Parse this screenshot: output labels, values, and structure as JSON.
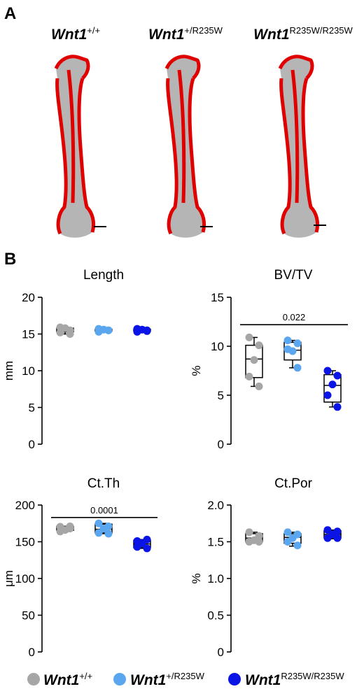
{
  "panels": {
    "a_label": "A",
    "b_label": "B"
  },
  "genotypes": [
    {
      "base": "Wnt1",
      "sup": "+/+"
    },
    {
      "base": "Wnt1",
      "sup": "+/R235W"
    },
    {
      "base": "Wnt1",
      "sup": "R235W/R235W"
    }
  ],
  "colors": {
    "wt": "#a6a6a6",
    "het": "#5aa7f0",
    "hom": "#0a14e6",
    "bone_gray": "#b5b5b5",
    "bone_red": "#e00000"
  },
  "chart_data": [
    {
      "type": "box",
      "title": "Length",
      "ylabel": "mm",
      "ylim": [
        0,
        20
      ],
      "yticks": [
        0,
        5,
        10,
        15,
        20
      ],
      "series": [
        {
          "group": "wt",
          "points": [
            15.2,
            15.5,
            15.8,
            15.9,
            15.0
          ],
          "box": [
            15.0,
            15.3,
            15.6,
            15.8,
            15.9
          ]
        },
        {
          "group": "het",
          "points": [
            15.3,
            15.5,
            15.6,
            15.7,
            15.5
          ],
          "box": [
            15.3,
            15.4,
            15.5,
            15.65,
            15.7
          ]
        },
        {
          "group": "hom",
          "points": [
            15.3,
            15.5,
            15.6,
            15.7,
            15.4
          ],
          "box": [
            15.3,
            15.4,
            15.5,
            15.65,
            15.7
          ]
        }
      ],
      "annotation": null
    },
    {
      "type": "box",
      "title": "BV/TV",
      "ylabel": "%",
      "ylim": [
        0,
        15
      ],
      "yticks": [
        0,
        5,
        10,
        15
      ],
      "series": [
        {
          "group": "wt",
          "points": [
            10.9,
            10.1,
            8.6,
            6.9,
            5.9
          ],
          "box": [
            5.9,
            6.8,
            8.7,
            10.1,
            10.9
          ]
        },
        {
          "group": "het",
          "points": [
            10.6,
            10.3,
            9.5,
            9.7,
            7.8
          ],
          "box": [
            7.8,
            8.6,
            9.6,
            10.4,
            10.6
          ]
        },
        {
          "group": "hom",
          "points": [
            7.5,
            7.0,
            6.1,
            5.0,
            3.8
          ],
          "box": [
            3.8,
            4.3,
            6.0,
            7.1,
            7.5
          ]
        }
      ],
      "annotation": {
        "from": 0,
        "to": 2,
        "y": 12.2,
        "label": "0.022"
      }
    },
    {
      "type": "box",
      "title": "Ct.Th",
      "ylabel": "μm",
      "ylim": [
        0,
        200
      ],
      "yticks": [
        0,
        50,
        100,
        150,
        200
      ],
      "series": [
        {
          "group": "wt",
          "points": [
            170.5,
            168.0,
            166.0,
            164.0,
            171.0
          ],
          "box": [
            164.0,
            165.5,
            168.0,
            171.0,
            171.0
          ]
        },
        {
          "group": "het",
          "points": [
            175.0,
            171.0,
            168.0,
            162.0,
            161.0
          ],
          "box": [
            161.0,
            162.0,
            167.0,
            174.0,
            175.0
          ]
        },
        {
          "group": "hom",
          "points": [
            151.0,
            153.0,
            148.0,
            143.0,
            141.0
          ],
          "box": [
            141.0,
            142.0,
            147.0,
            152.0,
            153.0
          ]
        }
      ],
      "annotation": {
        "from": 0,
        "to": 2,
        "y": 183,
        "label": "0.0001"
      }
    },
    {
      "type": "box",
      "title": "Ct.Por",
      "ylabel": "%",
      "ylim": [
        0,
        2.0
      ],
      "yticks": [
        0,
        0.5,
        1.0,
        1.5,
        2.0
      ],
      "ytick_labels": [
        "0",
        "0.5",
        "1.0",
        "1.5",
        "2.0"
      ],
      "series": [
        {
          "group": "wt",
          "points": [
            1.63,
            1.58,
            1.52,
            1.5,
            1.5
          ],
          "box": [
            1.5,
            1.5,
            1.55,
            1.61,
            1.63
          ]
        },
        {
          "group": "het",
          "points": [
            1.63,
            1.6,
            1.55,
            1.5,
            1.45
          ],
          "box": [
            1.44,
            1.48,
            1.56,
            1.61,
            1.63
          ]
        },
        {
          "group": "hom",
          "points": [
            1.66,
            1.64,
            1.6,
            1.55,
            1.55
          ],
          "box": [
            1.54,
            1.55,
            1.6,
            1.65,
            1.66
          ]
        }
      ],
      "annotation": null
    }
  ]
}
